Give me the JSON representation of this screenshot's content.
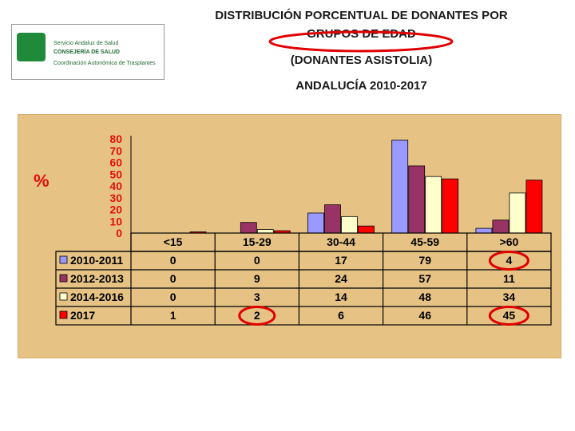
{
  "header": {
    "title_line1": "DISTRIBUCIÓN PORCENTUAL DE DONANTES POR",
    "title_line2": "GRUPOS DE EDAD",
    "subtitle": "(DONANTES ASISTOLIA)",
    "region_years": "ANDALUCÍA 2010-2017"
  },
  "logo": {
    "line1": "Servicio Andaluz de Salud",
    "line2": "CONSEJERÍA DE SALUD",
    "line3": "Coordinación Autonómica de Trasplantes"
  },
  "chart_data": {
    "type": "bar",
    "ylabel": "%",
    "ylim": [
      0,
      80
    ],
    "yticks": [
      0,
      10,
      20,
      30,
      40,
      50,
      60,
      70,
      80
    ],
    "categories": [
      "<15",
      "15-29",
      "30-44",
      "45-59",
      ">60"
    ],
    "series": [
      {
        "name": "2010-2011",
        "color": "#9999ff",
        "values": [
          0,
          0,
          17,
          79,
          4
        ]
      },
      {
        "name": "2012-2013",
        "color": "#993366",
        "values": [
          0,
          9,
          24,
          57,
          11
        ]
      },
      {
        "name": "2014-2016",
        "color": "#ffffcc",
        "values": [
          0,
          3,
          14,
          48,
          34
        ]
      },
      {
        "name": "2017",
        "color": "#ff0000",
        "values": [
          1,
          2,
          6,
          46,
          45
        ]
      }
    ],
    "grid": false,
    "legend": "data-table-below"
  }
}
